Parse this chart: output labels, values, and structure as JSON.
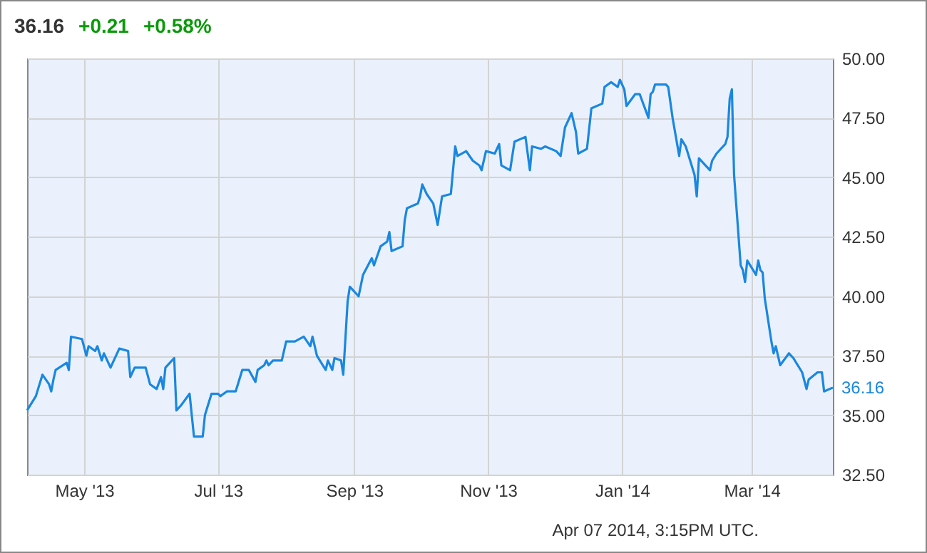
{
  "chart_data": {
    "type": "line",
    "title": "36.16",
    "annotations": [
      "+0.21",
      "+0.58%",
      "Apr 07 2014, 3:15PM UTC.",
      {
        "text": "36.16",
        "x": "2014-04-07",
        "y": 36.16
      }
    ],
    "x": [
      "2013-04-05",
      "2013-04-09",
      "2013-04-12",
      "2013-04-15",
      "2013-04-16",
      "2013-04-17",
      "2013-04-18",
      "2013-04-23",
      "2013-04-24",
      "2013-04-25",
      "2013-04-30",
      "2013-05-02",
      "2013-05-03",
      "2013-05-06",
      "2013-05-07",
      "2013-05-09",
      "2013-05-10",
      "2013-05-13",
      "2013-05-17",
      "2013-05-21",
      "2013-05-22",
      "2013-05-24",
      "2013-05-29",
      "2013-05-31",
      "2013-06-03",
      "2013-06-05",
      "2013-06-06",
      "2013-06-07",
      "2013-06-11",
      "2013-06-12",
      "2013-06-14",
      "2013-06-18",
      "2013-06-20",
      "2013-06-24",
      "2013-06-25",
      "2013-06-28",
      "2013-07-01",
      "2013-07-02",
      "2013-07-05",
      "2013-07-09",
      "2013-07-12",
      "2013-07-15",
      "2013-07-18",
      "2013-07-19",
      "2013-07-22",
      "2013-07-23",
      "2013-07-24",
      "2013-07-26",
      "2013-07-30",
      "2013-08-01",
      "2013-08-05",
      "2013-08-09",
      "2013-08-12",
      "2013-08-13",
      "2013-08-15",
      "2013-08-19",
      "2013-08-20",
      "2013-08-22",
      "2013-08-23",
      "2013-08-26",
      "2013-08-27",
      "2013-08-29",
      "2013-08-30",
      "2013-09-03",
      "2013-09-05",
      "2013-09-09",
      "2013-09-10",
      "2013-09-13",
      "2013-09-16",
      "2013-09-17",
      "2013-09-18",
      "2013-09-23",
      "2013-09-24",
      "2013-09-25",
      "2013-09-30",
      "2013-10-01",
      "2013-10-02",
      "2013-10-04",
      "2013-10-07",
      "2013-10-09",
      "2013-10-11",
      "2013-10-15",
      "2013-10-17",
      "2013-10-18",
      "2013-10-22",
      "2013-10-25",
      "2013-10-28",
      "2013-10-29",
      "2013-10-31",
      "2013-11-04",
      "2013-11-06",
      "2013-11-07",
      "2013-11-11",
      "2013-11-13",
      "2013-11-18",
      "2013-11-20",
      "2013-11-21",
      "2013-11-25",
      "2013-11-27",
      "2013-12-02",
      "2013-12-04",
      "2013-12-06",
      "2013-12-09",
      "2013-12-11",
      "2013-12-12",
      "2013-12-16",
      "2013-12-18",
      "2013-12-23",
      "2013-12-24",
      "2013-12-27",
      "2013-12-30",
      "2013-12-31",
      "2014-01-02",
      "2014-01-03",
      "2014-01-07",
      "2014-01-09",
      "2014-01-13",
      "2014-01-14",
      "2014-01-15",
      "2014-01-16",
      "2014-01-21",
      "2014-01-22",
      "2014-01-24",
      "2014-01-27",
      "2014-01-28",
      "2014-01-30",
      "2014-02-03",
      "2014-02-04",
      "2014-02-05",
      "2014-02-10",
      "2014-02-11",
      "2014-02-13",
      "2014-02-17",
      "2014-02-18",
      "2014-02-19",
      "2014-02-20",
      "2014-02-21",
      "2014-02-24",
      "2014-02-25",
      "2014-02-26",
      "2014-02-27",
      "2014-03-03",
      "2014-03-04",
      "2014-03-05",
      "2014-03-06",
      "2014-03-07",
      "2014-03-10",
      "2014-03-11",
      "2014-03-12",
      "2014-03-14",
      "2014-03-18",
      "2014-03-20",
      "2014-03-24",
      "2014-03-26",
      "2014-03-27",
      "2014-03-31",
      "2014-04-02",
      "2014-04-03",
      "2014-04-07"
    ],
    "series": [
      {
        "color": "#1a87e0",
        "values": [
          35.2,
          35.8,
          36.7,
          36.3,
          36.0,
          36.5,
          36.9,
          37.2,
          36.9,
          38.3,
          38.2,
          37.5,
          37.9,
          37.7,
          37.9,
          37.3,
          37.6,
          37.0,
          37.8,
          37.7,
          36.6,
          37.0,
          37.0,
          36.3,
          36.1,
          36.6,
          36.1,
          37.0,
          37.4,
          35.2,
          35.4,
          35.9,
          34.1,
          34.1,
          35.0,
          35.9,
          35.9,
          35.8,
          36.0,
          36.0,
          36.9,
          36.9,
          36.4,
          36.9,
          37.1,
          37.3,
          37.1,
          37.3,
          37.3,
          38.1,
          38.1,
          38.3,
          37.9,
          38.3,
          37.5,
          36.9,
          37.3,
          36.9,
          37.4,
          37.3,
          36.7,
          39.8,
          40.4,
          40.0,
          40.9,
          41.6,
          41.3,
          42.1,
          42.3,
          42.7,
          41.9,
          42.1,
          43.2,
          43.7,
          43.9,
          44.2,
          44.7,
          44.3,
          43.9,
          43.0,
          44.2,
          44.3,
          46.3,
          45.9,
          46.1,
          45.7,
          45.5,
          45.3,
          46.1,
          46.0,
          46.4,
          45.5,
          45.3,
          46.5,
          46.7,
          45.3,
          46.3,
          46.2,
          46.3,
          46.1,
          45.9,
          47.1,
          47.7,
          46.9,
          46.0,
          46.2,
          47.9,
          48.1,
          48.8,
          49.0,
          48.8,
          49.1,
          48.7,
          48.0,
          48.5,
          48.5,
          47.5,
          48.5,
          48.6,
          48.9,
          48.9,
          48.8,
          47.5,
          45.9,
          46.6,
          46.3,
          45.1,
          44.2,
          45.8,
          45.3,
          45.7,
          46.0,
          46.4,
          46.7,
          48.3,
          48.7,
          45.1,
          41.3,
          41.1,
          40.6,
          41.5,
          40.9,
          41.5,
          41.1,
          41.0,
          39.9,
          38.1,
          37.6,
          37.9,
          37.1,
          37.6,
          37.4,
          36.8,
          36.1,
          36.5,
          36.8,
          36.8,
          36.0,
          36.16
        ]
      }
    ],
    "xlim": [
      "2013-04-05",
      "2014-04-07"
    ],
    "xticks": [
      {
        "value": "2013-05-01",
        "label": "May '13"
      },
      {
        "value": "2013-07-01",
        "label": "Jul '13"
      },
      {
        "value": "2013-09-01",
        "label": "Sep '13"
      },
      {
        "value": "2013-11-01",
        "label": "Nov '13"
      },
      {
        "value": "2014-01-01",
        "label": "Jan '14"
      },
      {
        "value": "2014-03-01",
        "label": "Mar '14"
      }
    ],
    "ylim": [
      32.5,
      50
    ],
    "yticks": [
      {
        "value": 32.5,
        "label": "32.50"
      },
      {
        "value": 35,
        "label": "35.00"
      },
      {
        "value": 37.5,
        "label": "37.50"
      },
      {
        "value": 40,
        "label": "40.00"
      },
      {
        "value": 42.5,
        "label": "42.50"
      },
      {
        "value": 45,
        "label": "45.00"
      },
      {
        "value": 47.5,
        "label": "47.50"
      },
      {
        "value": 50,
        "label": "50.00"
      }
    ],
    "grid": true,
    "marker": "none",
    "line_style": "solid"
  }
}
